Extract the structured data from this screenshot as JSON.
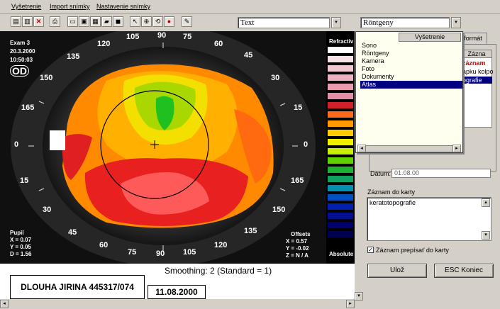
{
  "menu": [
    "Vyšetrenie",
    "Import snímky",
    "Nastavenie snímky"
  ],
  "toolbar": {
    "combo_left": "Text",
    "combo_right": "Röntgeny"
  },
  "exam": {
    "exam_label": "Exam 3",
    "date": "20.3.2000",
    "time": "10:50:03",
    "eye": "OD",
    "pupil_label": "Pupil",
    "pupil_x": "X = 0.07",
    "pupil_y": "Y = 0.05",
    "pupil_d": "D = 1.56",
    "offsets_label": "Offsets",
    "offset_x": "X = 0.57",
    "offset_y": "Y = -0.02",
    "offset_z": "Z = N / A"
  },
  "angles": {
    "a105t": "105",
    "a90t": "90",
    "a75t": "75",
    "a120": "120",
    "a60": "60",
    "a135": "135",
    "a45": "45",
    "a150": "150",
    "a30": "30",
    "a165": "165",
    "a15": "15",
    "a0": "0",
    "a180": "0",
    "a15b": "15",
    "a165b": "165",
    "a30b": "30",
    "a150b": "150",
    "a45b": "45",
    "a135b": "135",
    "a60b": "60",
    "a120b": "120",
    "a75b": "75",
    "a105b": "105",
    "a90b": "90"
  },
  "scale": {
    "top_label": "Refractiv",
    "bottom_label": "Absolute",
    "colors": [
      "#ffffff",
      "#f6e2e6",
      "#f2c8d0",
      "#eeb0be",
      "#ea9aae",
      "#e68ea6",
      "#d0202a",
      "#ff6a1a",
      "#ff9a00",
      "#ffcc00",
      "#f0f000",
      "#c8f000",
      "#60d000",
      "#20b030",
      "#10a060",
      "#0090b0",
      "#0050c0",
      "#0020b0",
      "#001090",
      "#000070",
      "#000050"
    ]
  },
  "bottom": {
    "patient": "DLOUHA JIRINA 445317/074",
    "smoothing": "Smoothing: 2  (Standard = 1)",
    "date": "11.08.2000"
  },
  "panel": {
    "tab_active": "Vyšetrenie",
    "tab_other": "formát",
    "column_header": "Zázna",
    "list_hint1": "záznam",
    "list_hint2": "ápku kolpo",
    "list_hint3": "ografie",
    "datum_label": "Dátum:",
    "datum_value": "01.08.00",
    "zaznam_label": "Záznam do karty",
    "zaznam_value": "keratotopografie",
    "checkbox_label": "Záznam prepísať do karty",
    "save_button": "Ulož",
    "close_button": "ESC Koniec"
  },
  "dropdown": {
    "items": [
      "Sono",
      "Röntgeny",
      "Kamera",
      "Foto",
      "Dokumenty",
      "Atlas"
    ],
    "selected": "Atlas"
  }
}
